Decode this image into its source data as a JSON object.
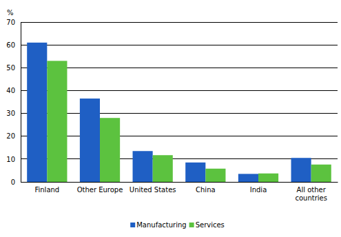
{
  "chart_data": {
    "type": "bar",
    "y_label": "%",
    "categories": [
      "Finland",
      "Other Europe",
      "United States",
      "China",
      "India",
      "All other countries"
    ],
    "series": [
      {
        "name": "Manufacturing",
        "color": "#1f5fc4",
        "values": [
          61,
          36.5,
          13.5,
          8.5,
          3.5,
          10.5
        ]
      },
      {
        "name": "Services",
        "color": "#5cc23f",
        "values": [
          53,
          28,
          11.7,
          5.8,
          3.7,
          7.6
        ]
      }
    ],
    "ylim": [
      0,
      70
    ],
    "yticks": [
      0,
      10,
      20,
      30,
      40,
      50,
      60,
      70
    ],
    "grid": true,
    "legend": "bottom"
  }
}
